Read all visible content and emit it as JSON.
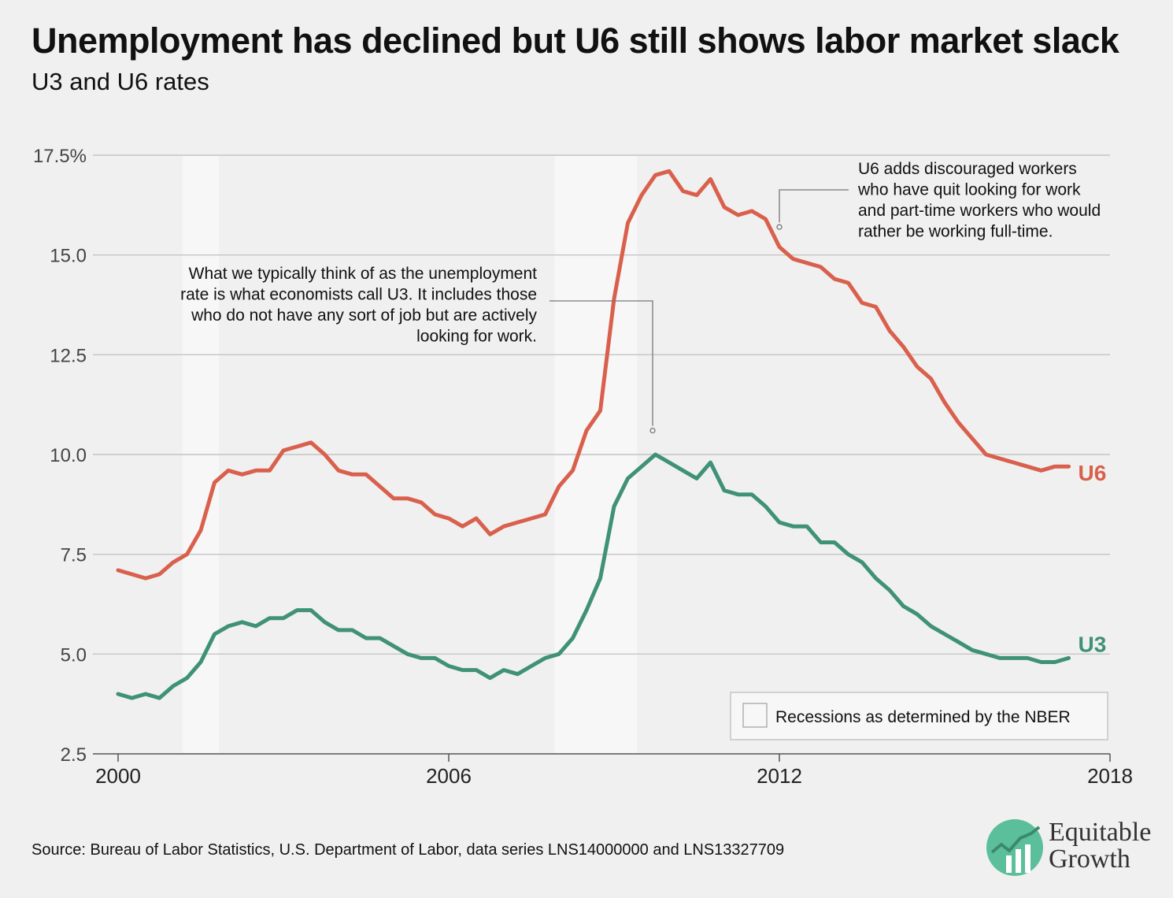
{
  "title": "Unemployment has declined but U6 still shows labor market slack",
  "subtitle": "U3 and U6 rates",
  "source": "Source: Bureau of Labor Statistics, U.S. Department of Labor, data series LNS14000000 and LNS13327709",
  "logo": {
    "line1": "Equitable",
    "line2": "Growth",
    "icon": "trend-up-icon"
  },
  "colors": {
    "u6": "#d9604c",
    "u3": "#3f9177",
    "grid": "#c4c4c4",
    "recession": "#f7f7f7",
    "background": "#f0f0f0"
  },
  "chart_data": {
    "type": "line",
    "xlim": [
      2000,
      2018
    ],
    "ylim": [
      2.5,
      17.5
    ],
    "x_ticks": [
      "2000",
      "2006",
      "2012",
      "2018"
    ],
    "x_tick_values": [
      2000,
      2006,
      2012,
      2018
    ],
    "y_ticks": [
      "17.5%",
      "15.0",
      "12.5",
      "10.0",
      "7.5",
      "5.0",
      "2.5"
    ],
    "y_tick_values": [
      17.5,
      15,
      12.5,
      10,
      7.5,
      5,
      2.5
    ],
    "grid": "horizontal",
    "recessions": [
      [
        2001.17,
        2001.83
      ],
      [
        2007.92,
        2009.42
      ]
    ],
    "legend": {
      "label": "Recessions as determined by the NBER",
      "placement": "bottom-right"
    },
    "annotations": [
      {
        "lines": [
          "What we typically think of as the unemployment",
          "rate is what economists call U3. It includes those",
          "who do not have any sort of job but are actively",
          "looking for work."
        ],
        "target": [
          2009.7,
          10.6
        ],
        "align": "right"
      },
      {
        "lines": [
          "U6 adds discouraged workers",
          "who have quit looking for work",
          "and part-time workers who would",
          "rather be working full-time."
        ],
        "target": [
          2012.0,
          15.7
        ],
        "align": "left"
      }
    ],
    "series": [
      {
        "name": "U6",
        "x": [
          2000.0,
          2000.25,
          2000.5,
          2000.75,
          2001.0,
          2001.25,
          2001.5,
          2001.75,
          2002.0,
          2002.25,
          2002.5,
          2002.75,
          2003.0,
          2003.25,
          2003.5,
          2003.75,
          2004.0,
          2004.25,
          2004.5,
          2004.75,
          2005.0,
          2005.25,
          2005.5,
          2005.75,
          2006.0,
          2006.25,
          2006.5,
          2006.75,
          2007.0,
          2007.25,
          2007.5,
          2007.75,
          2008.0,
          2008.25,
          2008.5,
          2008.75,
          2009.0,
          2009.25,
          2009.5,
          2009.75,
          2010.0,
          2010.25,
          2010.5,
          2010.75,
          2011.0,
          2011.25,
          2011.5,
          2011.75,
          2012.0,
          2012.25,
          2012.5,
          2012.75,
          2013.0,
          2013.25,
          2013.5,
          2013.75,
          2014.0,
          2014.25,
          2014.5,
          2014.75,
          2015.0,
          2015.25,
          2015.5,
          2015.75,
          2016.0,
          2016.25,
          2016.5,
          2016.75,
          2017.0,
          2017.25
        ],
        "y": [
          7.1,
          7.0,
          6.9,
          7.0,
          7.3,
          7.5,
          8.1,
          9.3,
          9.6,
          9.5,
          9.6,
          9.6,
          10.1,
          10.2,
          10.3,
          10.0,
          9.6,
          9.5,
          9.5,
          9.2,
          8.9,
          8.9,
          8.8,
          8.5,
          8.4,
          8.2,
          8.4,
          8.0,
          8.2,
          8.3,
          8.4,
          8.5,
          9.2,
          9.6,
          10.6,
          11.1,
          13.9,
          15.8,
          16.5,
          17.0,
          17.1,
          16.6,
          16.5,
          16.9,
          16.2,
          16.0,
          16.1,
          15.9,
          15.2,
          14.9,
          14.8,
          14.7,
          14.4,
          14.3,
          13.8,
          13.7,
          13.1,
          12.7,
          12.2,
          11.9,
          11.3,
          10.8,
          10.4,
          10.0,
          9.9,
          9.8,
          9.7,
          9.6,
          9.7,
          9.7
        ]
      },
      {
        "name": "U3",
        "x": [
          2000.0,
          2000.25,
          2000.5,
          2000.75,
          2001.0,
          2001.25,
          2001.5,
          2001.75,
          2002.0,
          2002.25,
          2002.5,
          2002.75,
          2003.0,
          2003.25,
          2003.5,
          2003.75,
          2004.0,
          2004.25,
          2004.5,
          2004.75,
          2005.0,
          2005.25,
          2005.5,
          2005.75,
          2006.0,
          2006.25,
          2006.5,
          2006.75,
          2007.0,
          2007.25,
          2007.5,
          2007.75,
          2008.0,
          2008.25,
          2008.5,
          2008.75,
          2009.0,
          2009.25,
          2009.5,
          2009.75,
          2010.0,
          2010.25,
          2010.5,
          2010.75,
          2011.0,
          2011.25,
          2011.5,
          2011.75,
          2012.0,
          2012.25,
          2012.5,
          2012.75,
          2013.0,
          2013.25,
          2013.5,
          2013.75,
          2014.0,
          2014.25,
          2014.5,
          2014.75,
          2015.0,
          2015.25,
          2015.5,
          2015.75,
          2016.0,
          2016.25,
          2016.5,
          2016.75,
          2017.0,
          2017.25
        ],
        "y": [
          4.0,
          3.9,
          4.0,
          3.9,
          4.2,
          4.4,
          4.8,
          5.5,
          5.7,
          5.8,
          5.7,
          5.9,
          5.9,
          6.1,
          6.1,
          5.8,
          5.6,
          5.6,
          5.4,
          5.4,
          5.2,
          5.0,
          4.9,
          4.9,
          4.7,
          4.6,
          4.6,
          4.4,
          4.6,
          4.5,
          4.7,
          4.9,
          5.0,
          5.4,
          6.1,
          6.9,
          8.7,
          9.4,
          9.7,
          10.0,
          9.8,
          9.6,
          9.4,
          9.8,
          9.1,
          9.0,
          9.0,
          8.7,
          8.3,
          8.2,
          8.2,
          7.8,
          7.8,
          7.5,
          7.3,
          6.9,
          6.6,
          6.2,
          6.0,
          5.7,
          5.5,
          5.3,
          5.1,
          5.0,
          4.9,
          4.9,
          4.9,
          4.8,
          4.8,
          4.9
        ]
      }
    ]
  }
}
